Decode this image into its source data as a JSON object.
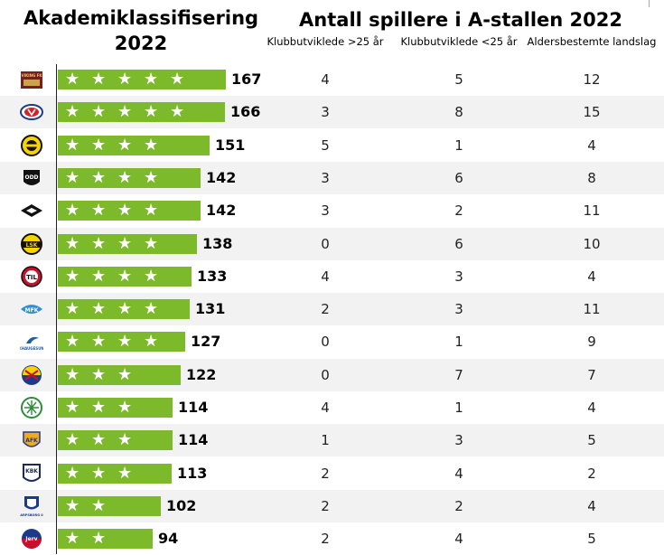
{
  "left_title_line1": "Akademiklassifisering",
  "left_title_line2": "2022",
  "right_title": "Antall spillere i A-stallen 2022",
  "colors": {
    "bar": "#7cba2b",
    "star": "#ffffff",
    "row_shade": "#f2f2f2"
  },
  "chart_data": {
    "type": "table",
    "columns": [
      "Klubbutviklede >25 år",
      "Klubbutviklede <25 år",
      "Aldersbestemte landslag"
    ],
    "rows": [
      {
        "logo": "viking-fk-logo-icon",
        "score": 167,
        "stars": 5,
        "values": [
          4,
          5,
          12
        ]
      },
      {
        "logo": "valerenga-logo-icon",
        "score": 166,
        "stars": 5,
        "values": [
          3,
          8,
          15
        ]
      },
      {
        "logo": "bodo-glimt-logo-icon",
        "score": 151,
        "stars": 4,
        "values": [
          5,
          1,
          4
        ]
      },
      {
        "logo": "odd-logo-icon",
        "score": 142,
        "stars": 4,
        "values": [
          3,
          6,
          8
        ]
      },
      {
        "logo": "rosenborg-logo-icon",
        "score": 142,
        "stars": 4,
        "values": [
          3,
          2,
          11
        ]
      },
      {
        "logo": "lillestrom-logo-icon",
        "score": 138,
        "stars": 4,
        "values": [
          0,
          6,
          10
        ]
      },
      {
        "logo": "tromso-logo-icon",
        "score": 133,
        "stars": 4,
        "values": [
          4,
          3,
          4
        ]
      },
      {
        "logo": "molde-logo-icon",
        "score": 131,
        "stars": 4,
        "values": [
          2,
          3,
          11
        ]
      },
      {
        "logo": "haugesund-logo-icon",
        "score": 127,
        "stars": 4,
        "values": [
          0,
          1,
          9
        ]
      },
      {
        "logo": "stabaek-logo-icon",
        "score": 122,
        "stars": 3,
        "values": [
          0,
          7,
          7
        ]
      },
      {
        "logo": "hamkam-logo-icon",
        "score": 114,
        "stars": 3,
        "values": [
          4,
          1,
          4
        ]
      },
      {
        "logo": "aalesund-logo-icon",
        "score": 114,
        "stars": 3,
        "values": [
          1,
          3,
          5
        ]
      },
      {
        "logo": "kbk-logo-icon",
        "score": 113,
        "stars": 3,
        "values": [
          2,
          4,
          2
        ]
      },
      {
        "logo": "sarpsborg-logo-icon",
        "score": 102,
        "stars": 2,
        "values": [
          2,
          2,
          4
        ]
      },
      {
        "logo": "jerv-logo-icon",
        "score": 94,
        "stars": 2,
        "values": [
          2,
          4,
          5
        ]
      }
    ],
    "logo_text": {
      "viking-fk-logo-icon": "VIKING FK",
      "odd-logo-icon": "ODD",
      "lillestrom-logo-icon": "LSK",
      "tromso-logo-icon": "TIL",
      "molde-logo-icon": "MFK",
      "haugesund-logo-icon": "FKHAUGESUND",
      "aalesund-logo-icon": "AFK",
      "kbk-logo-icon": "KBK",
      "sarpsborg-logo-icon": "SARPSBORG 08",
      "jerv-logo-icon": "Jerv"
    }
  }
}
